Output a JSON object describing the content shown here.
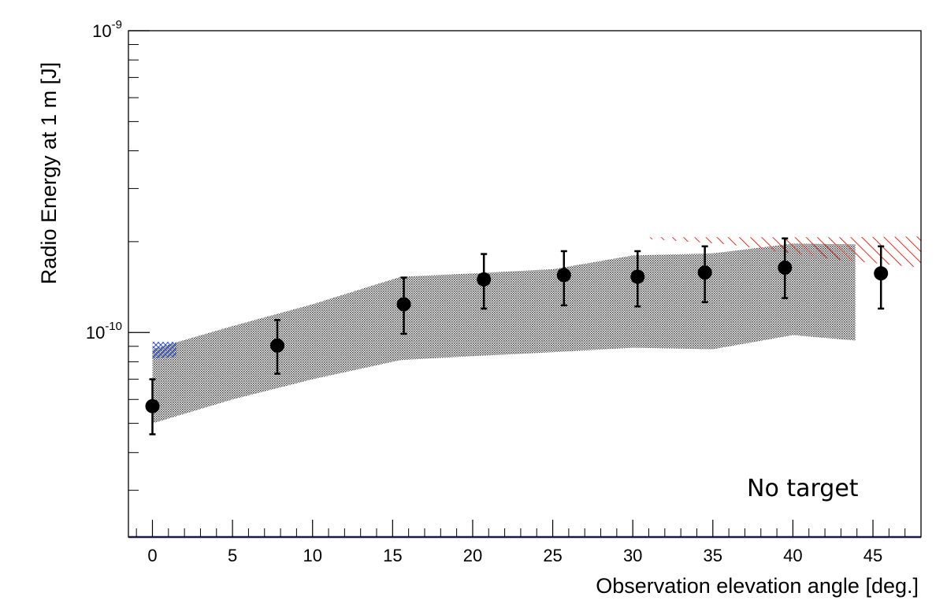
{
  "chart_data": {
    "type": "scatter",
    "title": "",
    "xlabel": "Observation elevation angle [deg.]",
    "ylabel": "Radio Energy at 1 m [J]",
    "xlim": [
      -1.5,
      48
    ],
    "ylim": [
      2.1e-11,
      1e-09
    ],
    "yscale": "log",
    "grid": false,
    "legend": "none",
    "x_ticks": [
      0,
      5,
      10,
      15,
      20,
      25,
      30,
      35,
      40,
      45
    ],
    "x_tick_labels": [
      "0",
      "5",
      "10",
      "15",
      "20",
      "25",
      "30",
      "35",
      "40",
      "45"
    ],
    "y_tick_labels": [
      {
        "value": 1e-10,
        "base": "10",
        "exp": "-10"
      },
      {
        "value": 1e-09,
        "base": "10",
        "exp": "-9"
      }
    ],
    "annotation": "No target",
    "series": [
      {
        "type": "points_with_errors",
        "color": "#000000",
        "points": [
          {
            "x": 0.0,
            "y": 5.7e-11,
            "y_low": 4.6e-11,
            "y_high": 7e-11
          },
          {
            "x": 7.8,
            "y": 9.05e-11,
            "y_low": 7.3e-11,
            "y_high": 1.1e-10
          },
          {
            "x": 15.7,
            "y": 1.24e-10,
            "y_low": 9.9e-11,
            "y_high": 1.52e-10
          },
          {
            "x": 20.7,
            "y": 1.5e-10,
            "y_low": 1.2e-10,
            "y_high": 1.82e-10
          },
          {
            "x": 25.7,
            "y": 1.55e-10,
            "y_low": 1.23e-10,
            "y_high": 1.86e-10
          },
          {
            "x": 30.3,
            "y": 1.53e-10,
            "y_low": 1.22e-10,
            "y_high": 1.86e-10
          },
          {
            "x": 34.5,
            "y": 1.58e-10,
            "y_low": 1.26e-10,
            "y_high": 1.93e-10
          },
          {
            "x": 39.5,
            "y": 1.64e-10,
            "y_low": 1.3e-10,
            "y_high": 2.05e-10
          },
          {
            "x": 45.5,
            "y": 1.57e-10,
            "y_low": 1.2e-10,
            "y_high": 1.93e-10
          }
        ]
      },
      {
        "type": "band",
        "color": "#555555",
        "x": [
          0,
          5,
          10,
          15.5,
          20,
          25,
          30,
          35,
          40,
          43.9
        ],
        "lower": [
          5e-11,
          6e-11,
          7e-11,
          8.1e-11,
          8.35e-11,
          8.6e-11,
          8.9e-11,
          8.8e-11,
          9.8e-11,
          9.4e-11
        ],
        "upper": [
          8.8e-11,
          1.05e-10,
          1.24e-10,
          1.53e-10,
          1.57e-10,
          1.62e-10,
          1.8e-10,
          1.83e-10,
          1.97e-10,
          1.96e-10
        ]
      },
      {
        "type": "band",
        "color": "#e03020",
        "x": [
          31,
          36,
          39,
          43,
          48
        ],
        "lower": [
          2.04e-10,
          1.96e-10,
          1.86e-10,
          1.74e-10,
          1.64e-10
        ],
        "upper": [
          2.07e-10,
          2.07e-10,
          2.07e-10,
          2.07e-10,
          2.08e-10
        ]
      },
      {
        "type": "band",
        "color": "#3050d0",
        "x": [
          0,
          1.5
        ],
        "lower": [
          8.2e-11,
          8.3e-11
        ],
        "upper": [
          9.3e-11,
          9.3e-11
        ]
      }
    ]
  }
}
